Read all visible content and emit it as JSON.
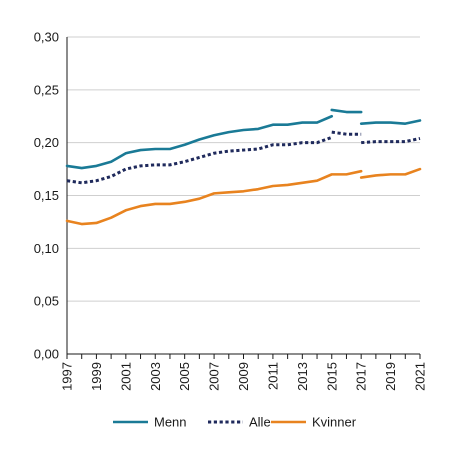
{
  "chart_data": {
    "type": "line",
    "title": "",
    "xlabel": "",
    "ylabel": "",
    "ylim": [
      0,
      0.3
    ],
    "yticks": [
      0,
      0.05,
      0.1,
      0.15,
      0.2,
      0.25,
      0.3
    ],
    "ytick_labels": [
      "0,00",
      "0,05",
      "0,10",
      "0,15",
      "0,20",
      "0,25",
      "0,30"
    ],
    "xlim": [
      1997,
      2021
    ],
    "xtick_labels": [
      "1997",
      "1999",
      "2001",
      "2003",
      "2005",
      "2007",
      "2009",
      "2011",
      "2013",
      "2015",
      "2017",
      "2019",
      "2021"
    ],
    "grid": "horizontal",
    "legend_position": "bottom",
    "series": [
      {
        "name": "Menn",
        "color": "#1a7a96",
        "style": "solid",
        "segments": [
          [
            [
              1997,
              0.178
            ],
            [
              1998,
              0.176
            ],
            [
              1999,
              0.178
            ],
            [
              2000,
              0.182
            ],
            [
              2001,
              0.19
            ],
            [
              2002,
              0.193
            ],
            [
              2003,
              0.194
            ],
            [
              2004,
              0.194
            ],
            [
              2005,
              0.198
            ],
            [
              2006,
              0.203
            ],
            [
              2007,
              0.207
            ],
            [
              2008,
              0.21
            ],
            [
              2009,
              0.212
            ],
            [
              2010,
              0.213
            ],
            [
              2011,
              0.217
            ],
            [
              2012,
              0.217
            ],
            [
              2013,
              0.219
            ],
            [
              2014,
              0.219
            ],
            [
              2015,
              0.225
            ]
          ],
          [
            [
              2015,
              0.231
            ],
            [
              2016,
              0.229
            ],
            [
              2017,
              0.229
            ]
          ],
          [
            [
              2017,
              0.218
            ],
            [
              2018,
              0.219
            ],
            [
              2019,
              0.219
            ],
            [
              2020,
              0.218
            ],
            [
              2021,
              0.221
            ]
          ]
        ]
      },
      {
        "name": "Alle",
        "color": "#1f2a5c",
        "style": "dotted",
        "segments": [
          [
            [
              1997,
              0.164
            ],
            [
              1998,
              0.162
            ],
            [
              1999,
              0.164
            ],
            [
              2000,
              0.168
            ],
            [
              2001,
              0.175
            ],
            [
              2002,
              0.178
            ],
            [
              2003,
              0.179
            ],
            [
              2004,
              0.179
            ],
            [
              2005,
              0.182
            ],
            [
              2006,
              0.186
            ],
            [
              2007,
              0.19
            ],
            [
              2008,
              0.192
            ],
            [
              2009,
              0.193
            ],
            [
              2010,
              0.194
            ],
            [
              2011,
              0.198
            ],
            [
              2012,
              0.198
            ],
            [
              2013,
              0.2
            ],
            [
              2014,
              0.2
            ],
            [
              2015,
              0.205
            ]
          ],
          [
            [
              2015,
              0.21
            ],
            [
              2016,
              0.208
            ],
            [
              2017,
              0.208
            ]
          ],
          [
            [
              2017,
              0.2
            ],
            [
              2018,
              0.201
            ],
            [
              2019,
              0.201
            ],
            [
              2020,
              0.201
            ],
            [
              2021,
              0.204
            ]
          ]
        ]
      },
      {
        "name": "Kvinner",
        "color": "#e8831f",
        "style": "solid",
        "segments": [
          [
            [
              1997,
              0.126
            ],
            [
              1998,
              0.123
            ],
            [
              1999,
              0.124
            ],
            [
              2000,
              0.129
            ],
            [
              2001,
              0.136
            ],
            [
              2002,
              0.14
            ],
            [
              2003,
              0.142
            ],
            [
              2004,
              0.142
            ],
            [
              2005,
              0.144
            ],
            [
              2006,
              0.147
            ],
            [
              2007,
              0.152
            ],
            [
              2008,
              0.153
            ],
            [
              2009,
              0.154
            ],
            [
              2010,
              0.156
            ],
            [
              2011,
              0.159
            ],
            [
              2012,
              0.16
            ],
            [
              2013,
              0.162
            ],
            [
              2014,
              0.164
            ],
            [
              2015,
              0.17
            ],
            [
              2016,
              0.17
            ],
            [
              2017,
              0.173
            ]
          ],
          [
            [
              2017,
              0.167
            ],
            [
              2018,
              0.169
            ],
            [
              2019,
              0.17
            ],
            [
              2020,
              0.17
            ],
            [
              2021,
              0.175
            ]
          ]
        ]
      }
    ]
  }
}
